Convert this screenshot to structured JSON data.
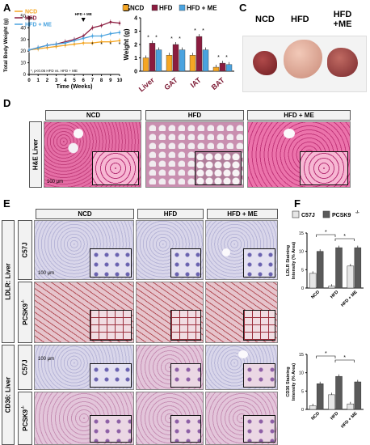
{
  "panels": {
    "a": "A",
    "b": "B",
    "c": "C",
    "d": "D",
    "e": "E",
    "f": "F"
  },
  "colors": {
    "ncd": "#f5a623",
    "hfd": "#8b1c3f",
    "me": "#4aa3df",
    "f_c57": "#e6e6e6",
    "f_pcsk9": "#5a5a5a"
  },
  "legend_a": {
    "ncd": "NCD",
    "hfd": "HFD",
    "me": "HFD + ME"
  },
  "legend_b": {
    "ncd": "NCD",
    "hfd": "HFD",
    "me": "HFD + ME"
  },
  "legend_f": {
    "c57": "C57J",
    "pcsk9": "PCSK9"
  },
  "legend_f_sup": "-/-",
  "chart_a": {
    "ylabel": "Total Body Weight (g)",
    "xlabel": "Time (Weeks)",
    "note": "*, p<0.05 HFD vs. HFD + ME",
    "arrow1": "HFD",
    "arrow2": "HFD + ME",
    "x_ticks": [
      "0",
      "1",
      "2",
      "3",
      "4",
      "5",
      "6",
      "7",
      "8",
      "9",
      "10"
    ],
    "y_ticks": [
      "0",
      "10",
      "20",
      "30",
      "40",
      "50"
    ]
  },
  "chart_b": {
    "ylabel": "Weight (g)",
    "y_ticks": [
      "0",
      "1",
      "2",
      "3",
      "4"
    ],
    "categories": [
      "Liver",
      "GAT",
      "IAT",
      "BAT"
    ]
  },
  "photo_c": {
    "labels": [
      "NCD",
      "HFD",
      "HFD\n+ME"
    ],
    "l1": "NCD",
    "l2": "HFD",
    "l3a": "HFD",
    "l3b": "+ME"
  },
  "panel_d": {
    "cols": [
      "NCD",
      "HFD",
      "HFD + ME"
    ],
    "row": "H&E Liver",
    "scale": "100 μm"
  },
  "panel_e": {
    "cols": [
      "NCD",
      "HFD",
      "HFD + ME"
    ],
    "group1": "LDLR: Liver",
    "group2": "CD36: Liver",
    "row_c57": "C57J",
    "row_pcsk9": "PCSK9",
    "pcsk9_sup": "-/-",
    "scale": "100 μm"
  },
  "chart_f1": {
    "ylabel1": "LDLR Staining",
    "ylabel2": "Intensity (% Area)",
    "y_ticks": [
      "0",
      "5",
      "10",
      "15"
    ],
    "categories": [
      "NCD",
      "HFD",
      "HFD + ME"
    ]
  },
  "chart_f2": {
    "ylabel1": "CD36 Staining",
    "ylabel2": "Intensity (% Area)",
    "y_ticks": [
      "0",
      "5",
      "10",
      "15"
    ],
    "categories": [
      "NCD",
      "HFD",
      "HFD + ME"
    ]
  },
  "chart_data": [
    {
      "type": "line",
      "xlabel": "Time (Weeks)",
      "ylabel": "Total Body Weight (g)",
      "x": [
        0,
        1,
        2,
        3,
        4,
        5,
        6,
        7,
        8,
        9,
        10
      ],
      "ylim": [
        0,
        50
      ],
      "series": [
        {
          "name": "NCD",
          "values": [
            21,
            22,
            23,
            24,
            25,
            26,
            27,
            27,
            28,
            28,
            29
          ]
        },
        {
          "name": "HFD",
          "values": [
            21,
            23,
            25,
            26,
            28,
            30,
            33,
            40,
            42,
            45,
            44
          ]
        },
        {
          "name": "HFD + ME",
          "values": [
            21,
            23,
            25,
            26,
            27,
            29,
            31,
            33,
            33,
            35,
            36
          ]
        }
      ],
      "annotations": [
        "*, p<0.05 HFD vs. HFD + ME",
        "HFD",
        "HFD + ME"
      ]
    },
    {
      "type": "bar",
      "ylabel": "Weight (g)",
      "categories": [
        "Liver",
        "GAT",
        "IAT",
        "BAT"
      ],
      "ylim": [
        0,
        4
      ],
      "series": [
        {
          "name": "NCD",
          "values": [
            1.0,
            1.2,
            1.2,
            0.3
          ]
        },
        {
          "name": "HFD",
          "values": [
            2.1,
            2.0,
            2.6,
            0.6
          ]
        },
        {
          "name": "HFD + ME",
          "values": [
            1.6,
            1.6,
            1.6,
            0.5
          ]
        }
      ]
    },
    {
      "type": "bar",
      "ylabel": "LDLR Staining Intensity (% Area)",
      "categories": [
        "NCD",
        "HFD",
        "HFD + ME"
      ],
      "ylim": [
        0,
        15
      ],
      "series": [
        {
          "name": "C57J",
          "values": [
            4.0,
            0.5,
            6.0
          ]
        },
        {
          "name": "PCSK9-/-",
          "values": [
            10.0,
            11.0,
            11.0
          ]
        }
      ]
    },
    {
      "type": "bar",
      "ylabel": "CD36 Staining Intensity (% Area)",
      "categories": [
        "NCD",
        "HFD",
        "HFD + ME"
      ],
      "ylim": [
        0,
        15
      ],
      "series": [
        {
          "name": "C57J",
          "values": [
            1.0,
            4.0,
            1.5
          ]
        },
        {
          "name": "PCSK9-/-",
          "values": [
            7.0,
            9.0,
            7.5
          ]
        }
      ]
    }
  ]
}
